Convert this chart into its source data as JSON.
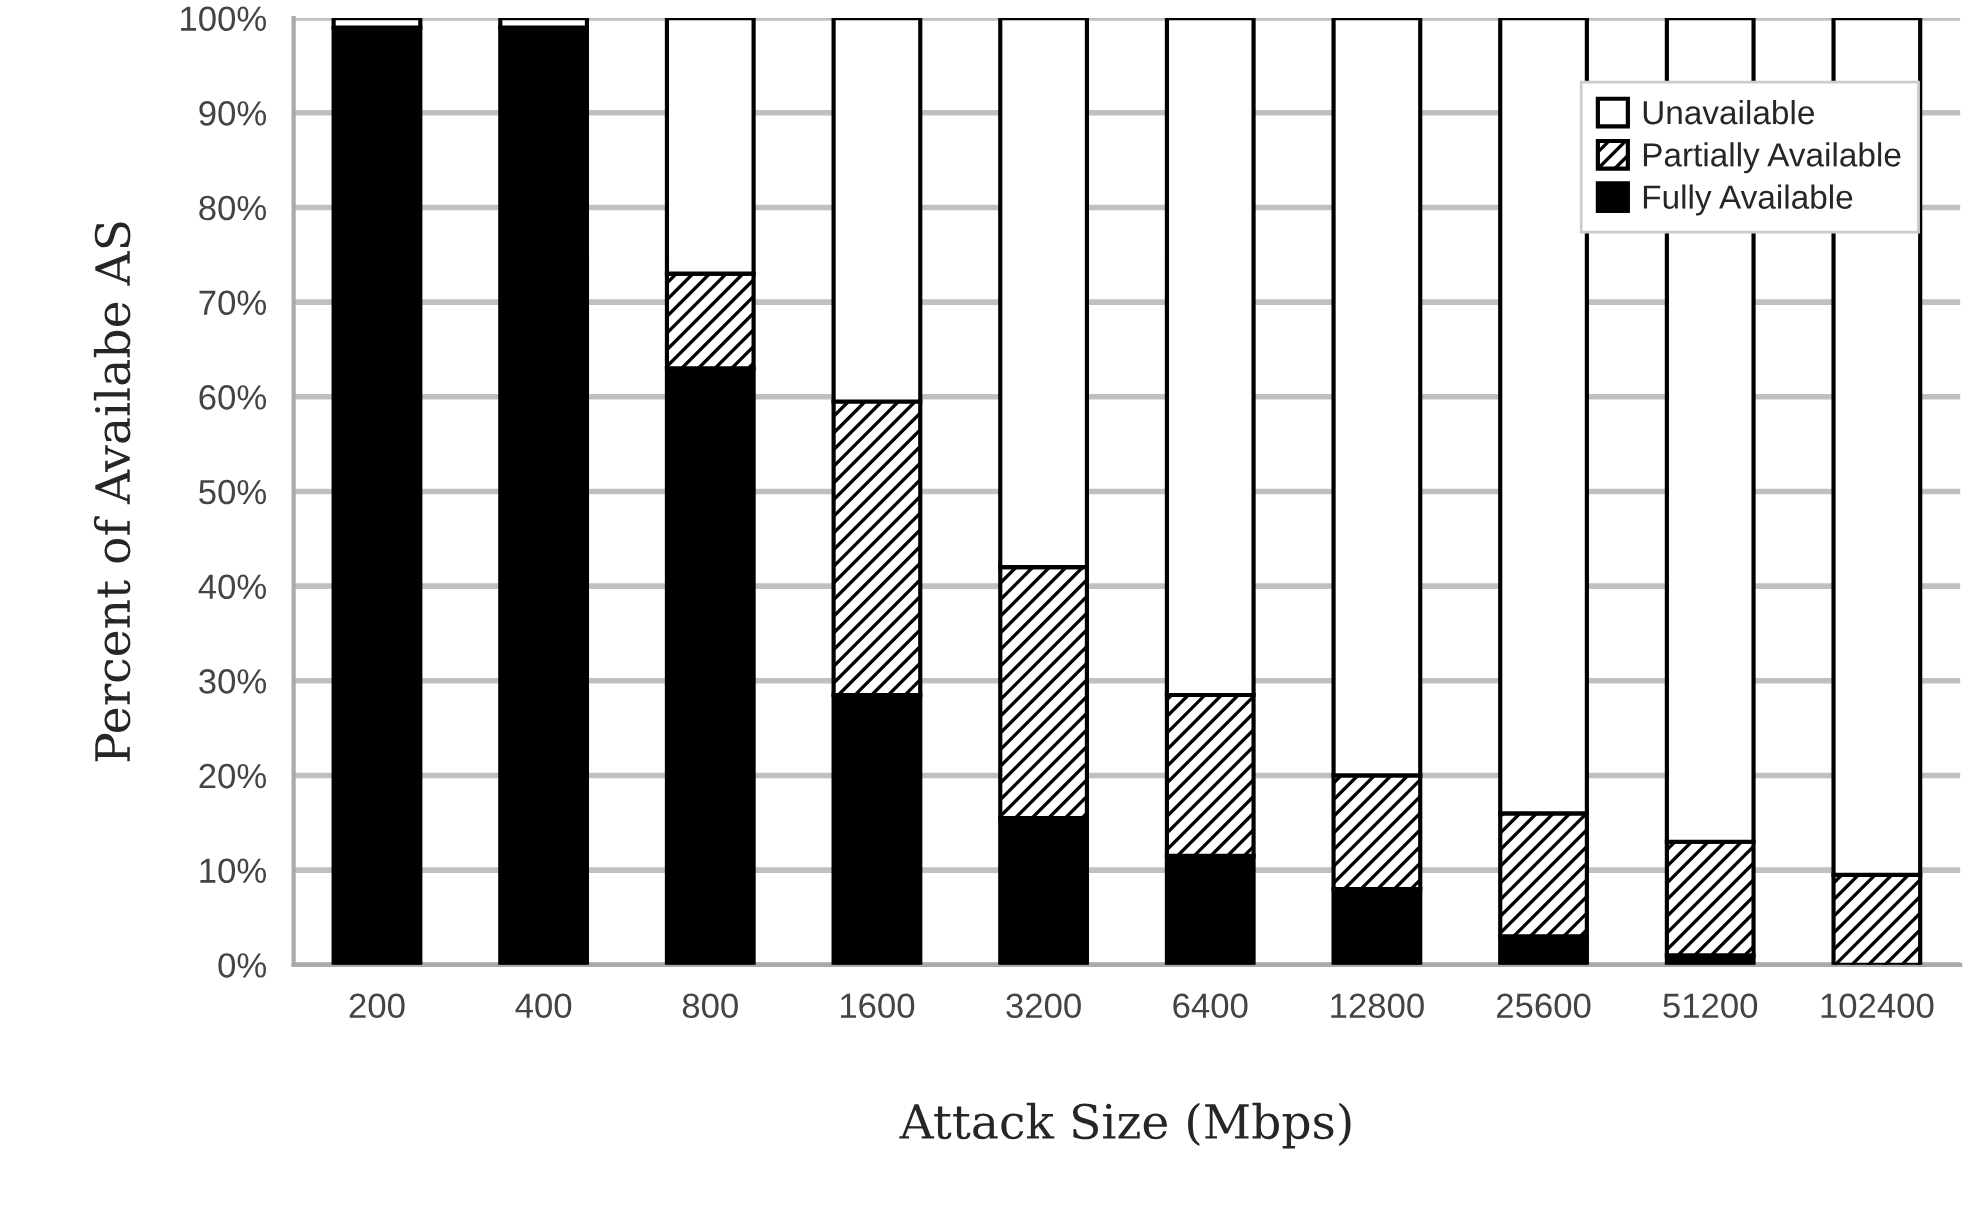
{
  "chart_data": {
    "type": "bar",
    "stacked": true,
    "xlabel": "Attack Size (Mbps)",
    "ylabel": "Percent of Availabe AS",
    "categories": [
      "200",
      "400",
      "800",
      "1600",
      "3200",
      "6400",
      "12800",
      "25600",
      "51200",
      "102400"
    ],
    "series": [
      {
        "name": "Fully Available",
        "color": "#000000",
        "values": [
          99,
          99,
          63,
          28.5,
          15.5,
          11.5,
          8,
          3,
          1,
          0
        ]
      },
      {
        "name": "Partially Available",
        "color": "#000000",
        "values": [
          0,
          0,
          10,
          31,
          26.5,
          17,
          12,
          13,
          12,
          9.5
        ]
      },
      {
        "name": "Unavailable",
        "color": "#ffffff",
        "values": [
          1,
          1,
          27,
          40.5,
          58,
          71.5,
          80,
          84,
          87,
          90.5
        ]
      }
    ],
    "ylim": [
      0,
      100
    ],
    "yticks": [
      {
        "value": 0,
        "label": "0%"
      },
      {
        "value": 10,
        "label": "10%"
      },
      {
        "value": 20,
        "label": "20%"
      },
      {
        "value": 30,
        "label": "30%"
      },
      {
        "value": 40,
        "label": "40%"
      },
      {
        "value": 50,
        "label": "50%"
      },
      {
        "value": 60,
        "label": "60%"
      },
      {
        "value": 70,
        "label": "70%"
      },
      {
        "value": 80,
        "label": "80%"
      },
      {
        "value": 90,
        "label": "90%"
      },
      {
        "value": 100,
        "label": "100%"
      }
    ],
    "grid": "y",
    "legend": "top right"
  }
}
